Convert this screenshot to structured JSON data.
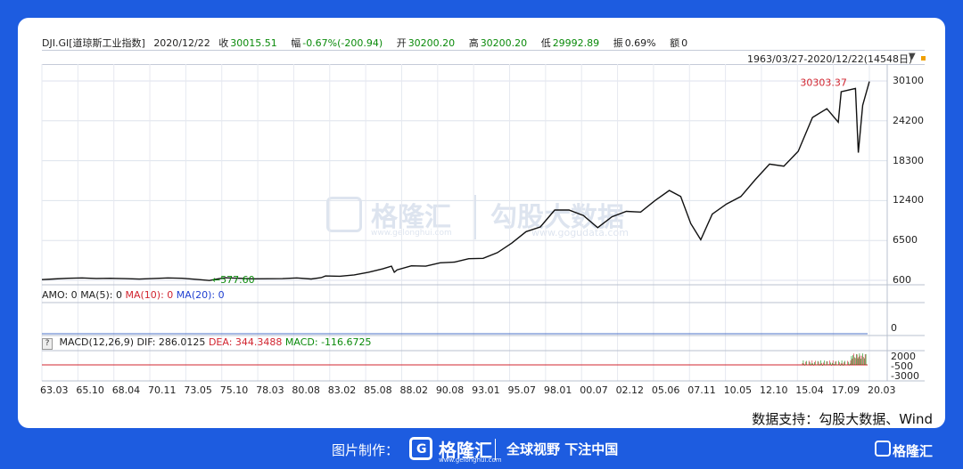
{
  "header": {
    "symbol": "DJI.GI[道琼斯工业指数]",
    "date": "2020/12/22",
    "close_label": "收",
    "close_value": "30015.51",
    "change_label": "幅",
    "change_value": "-0.67%(-200.94)",
    "open_label": "开",
    "open_value": "30200.20",
    "high_label": "高",
    "high_value": "30200.20",
    "low_label": "低",
    "low_value": "29992.89",
    "amp_label": "振",
    "amp_value": "0.69%",
    "amount_label": "额",
    "amount_value": "0"
  },
  "range": {
    "label": "1963/03/27-2020/12/22(14548日)"
  },
  "subpanels": {
    "amo": {
      "prefix": "AMO: 0",
      "ma5": "MA(5): 0",
      "ma10": "MA(10): 0",
      "ma20": "MA(20): 0",
      "zero": "0"
    },
    "macd": {
      "help": "?",
      "name": "MACD(12,26,9)",
      "dif": "DIF: 286.0125",
      "dea": "DEA: 344.3488",
      "macd": "MACD: -116.6725",
      "y_ticks": [
        "2000",
        "-500",
        "-3000"
      ]
    }
  },
  "credit": "数据支持：勾股大数据、Wind",
  "watermark": {
    "brand": "格隆汇",
    "brand_url": "www.gelonghui.com",
    "data_brand": "勾股大数据",
    "data_url": "www.gogudata.com"
  },
  "footer": {
    "made_by": "图片制作：",
    "logo_letter": "G",
    "brand": "格隆汇",
    "brand_url": "www.gelonghui.com",
    "slogan": "全球视野 下注中国",
    "corner_brand": "格隆汇"
  },
  "colors": {
    "background": "#1d5ce0",
    "line": "#111111",
    "high_label": "#d1242f",
    "low_label": "#0a8a0a",
    "ma10": "#d1242f",
    "ma20": "#1f3fd1"
  },
  "chart_data": {
    "type": "line",
    "title": "DJI.GI[道琼斯工业指数]",
    "xlabel": "",
    "ylabel": "",
    "x_ticks": [
      "63.03",
      "65.10",
      "68.04",
      "70.11",
      "73.05",
      "75.10",
      "78.03",
      "80.08",
      "83.02",
      "85.08",
      "88.02",
      "90.08",
      "93.01",
      "95.07",
      "98.01",
      "00.07",
      "02.12",
      "05.06",
      "07.11",
      "10.05",
      "12.10",
      "15.04",
      "17.09",
      "20.03"
    ],
    "y_ticks": [
      600,
      6500,
      12400,
      18300,
      24200,
      30100
    ],
    "ylim": [
      600,
      30100
    ],
    "grid": true,
    "annotations": [
      {
        "label": "30303.37",
        "x": 2020.0,
        "y": 30303.37,
        "kind": "high"
      },
      {
        "label": "577.60",
        "x": 1974.9,
        "y": 577.6,
        "kind": "low"
      }
    ],
    "series": [
      {
        "values_x": [
          1963.2,
          1964,
          1965,
          1966,
          1967,
          1968,
          1969,
          1970,
          1971,
          1972,
          1973,
          1974,
          1974.9,
          1975.5,
          1976,
          1977,
          1978,
          1979,
          1980,
          1981,
          1982,
          1982.7,
          1983,
          1984,
          1985,
          1986,
          1987,
          1987.6,
          1987.8,
          1988,
          1989,
          1990,
          1991,
          1992,
          1993,
          1994,
          1995,
          1996,
          1997,
          1998,
          1999,
          2000,
          2001,
          2002,
          2003,
          2004,
          2005,
          2006,
          2007,
          2007.8,
          2008.5,
          2009.2,
          2010,
          2011,
          2012,
          2013,
          2014,
          2015,
          2016,
          2017,
          2018,
          2018.8,
          2019,
          2020.0,
          2020.2,
          2020.5,
          2020.97
        ],
        "values": [
          700,
          800,
          900,
          950,
          880,
          900,
          850,
          780,
          880,
          950,
          900,
          750,
          578,
          830,
          980,
          900,
          820,
          840,
          850,
          950,
          800,
          1000,
          1250,
          1200,
          1400,
          1800,
          2300,
          2700,
          1800,
          2150,
          2750,
          2700,
          3200,
          3300,
          3800,
          3850,
          4700,
          6100,
          7800,
          8500,
          11000,
          11000,
          10200,
          8400,
          10000,
          10800,
          10700,
          12400,
          13900,
          13000,
          9000,
          6600,
          10400,
          11900,
          13000,
          15500,
          17800,
          17500,
          19700,
          24700,
          26000,
          24000,
          28500,
          29000,
          19500,
          26500,
          30015
        ]
      }
    ]
  }
}
